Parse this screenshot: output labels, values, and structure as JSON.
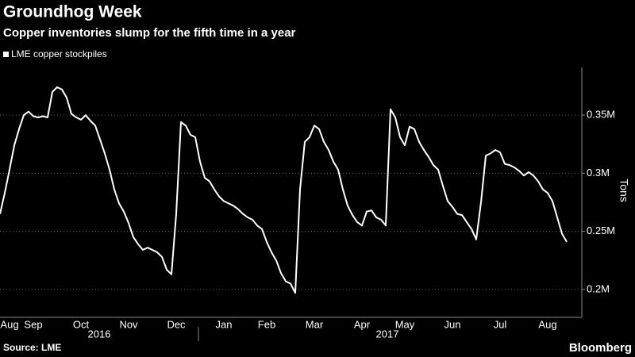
{
  "chart_data": {
    "type": "line",
    "title": "Groundhog Week",
    "subtitle": "Copper inventories slump for the fifth time in a year",
    "y_axis_label": "Tons",
    "source": "Source: LME",
    "brand": "Bloomberg",
    "year_labels": [
      "2016",
      "2017"
    ],
    "categories": [
      null,
      null,
      "Aug",
      null,
      null,
      null,
      null,
      "Sep",
      null,
      null,
      null,
      null,
      null,
      null,
      null,
      null,
      null,
      "Oct",
      null,
      null,
      null,
      null,
      null,
      null,
      null,
      null,
      null,
      "Nov",
      null,
      null,
      null,
      null,
      null,
      null,
      null,
      null,
      null,
      "Dec",
      null,
      null,
      null,
      null,
      null,
      null,
      null,
      null,
      null,
      "Jan",
      null,
      null,
      null,
      null,
      null,
      null,
      null,
      null,
      "Feb",
      null,
      null,
      null,
      null,
      null,
      null,
      null,
      null,
      null,
      "Mar",
      null,
      null,
      null,
      null,
      null,
      null,
      null,
      null,
      null,
      "Apr",
      null,
      null,
      null,
      null,
      null,
      null,
      null,
      null,
      "May",
      null,
      null,
      null,
      null,
      null,
      null,
      null,
      null,
      null,
      "Jun",
      null,
      null,
      null,
      null,
      null,
      null,
      null,
      null,
      null,
      "Jul",
      null,
      null,
      null,
      null,
      null,
      null,
      null,
      null,
      null,
      "Aug",
      null,
      null,
      null,
      null
    ],
    "series": [
      {
        "name": "LME copper stockpiles",
        "color": "#ffffff",
        "values": [
          265000,
          283000,
          303000,
          324000,
          338000,
          350000,
          353000,
          349000,
          348000,
          349000,
          348000,
          370000,
          374000,
          372000,
          365000,
          351000,
          348000,
          346000,
          350000,
          345000,
          341000,
          329000,
          317000,
          303000,
          286000,
          274000,
          267000,
          257000,
          245000,
          239000,
          234000,
          236000,
          234000,
          232000,
          228000,
          217000,
          213000,
          265000,
          344000,
          341000,
          333000,
          331000,
          310000,
          296000,
          293000,
          286000,
          280000,
          276000,
          274000,
          272000,
          269000,
          265000,
          262000,
          260000,
          255000,
          252000,
          241000,
          232000,
          225000,
          214000,
          207000,
          205000,
          197000,
          286000,
          327000,
          331000,
          341000,
          338000,
          327000,
          320000,
          310000,
          303000,
          286000,
          272000,
          264000,
          258000,
          255000,
          267000,
          268000,
          262000,
          260000,
          255000,
          355000,
          348000,
          331000,
          324000,
          340000,
          338000,
          327000,
          320000,
          314000,
          307000,
          303000,
          289000,
          276000,
          271000,
          265000,
          264000,
          258000,
          252000,
          243000,
          275000,
          315000,
          317000,
          320000,
          318000,
          308000,
          307000,
          305000,
          302000,
          298000,
          301000,
          298000,
          293000,
          286000,
          283000,
          276000,
          262000,
          248000,
          241000
        ]
      }
    ],
    "ylim": [
      176000,
      391000
    ],
    "yticks": [
      {
        "value": 200000,
        "label": "0.2M"
      },
      {
        "value": 250000,
        "label": "0.25M"
      },
      {
        "value": 300000,
        "label": "0.3M"
      },
      {
        "value": 350000,
        "label": "0.35M"
      }
    ],
    "grid": true
  }
}
